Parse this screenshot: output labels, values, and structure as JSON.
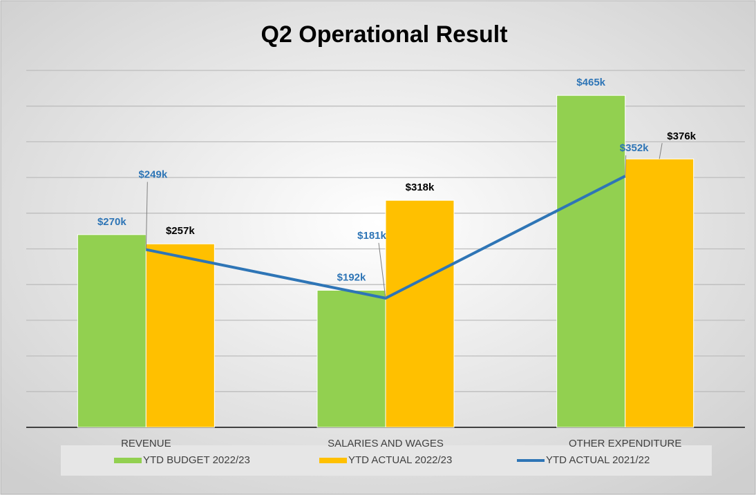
{
  "chart_data": {
    "type": "bar",
    "title": "Q2 Operational Result",
    "categories": [
      "REVENUE",
      "SALARIES AND WAGES",
      "OTHER EXPENDITURE"
    ],
    "series": [
      {
        "name": "YTD BUDGET 2022/23",
        "type": "bar",
        "color": "#92d050",
        "values": [
          270,
          192,
          465
        ],
        "value_labels": [
          "$270k",
          "$192k",
          "$465k"
        ]
      },
      {
        "name": "YTD ACTUAL 2022/23",
        "type": "bar",
        "color": "#ffc000",
        "values": [
          257,
          318,
          376
        ],
        "value_labels": [
          "$257k",
          "$318k",
          "$376k"
        ]
      },
      {
        "name": "YTD ACTUAL 2021/22",
        "type": "line",
        "color": "#2e75b6",
        "values": [
          249,
          181,
          352
        ],
        "value_labels": [
          "$249k",
          "$181k",
          "$352k"
        ]
      }
    ],
    "ylim": [
      0,
      500
    ],
    "yticks": [
      0,
      50,
      100,
      150,
      200,
      250,
      300,
      350,
      400,
      450,
      500
    ],
    "grid": true,
    "legend": "bottom"
  }
}
